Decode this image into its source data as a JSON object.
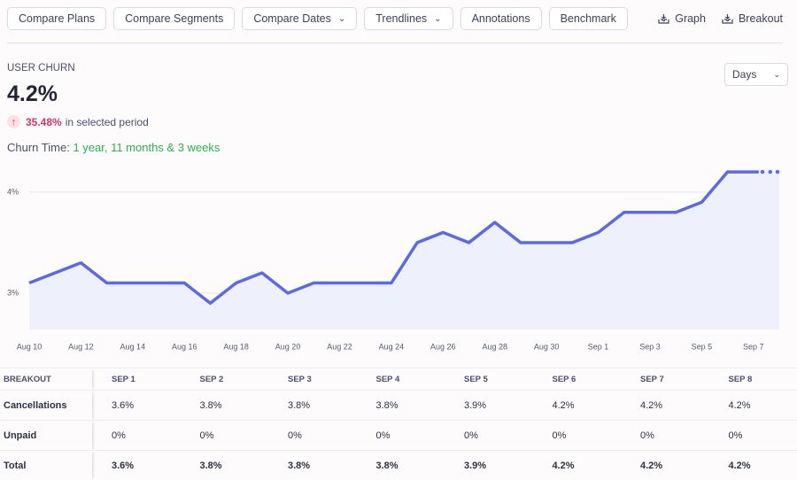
{
  "toolbar": {
    "buttons": [
      {
        "label": "Compare Plans",
        "dropdown": false
      },
      {
        "label": "Compare Segments",
        "dropdown": false
      },
      {
        "label": "Compare Dates",
        "dropdown": true
      },
      {
        "label": "Trendlines",
        "dropdown": true
      },
      {
        "label": "Annotations",
        "dropdown": false
      },
      {
        "label": "Benchmark",
        "dropdown": false
      }
    ],
    "actions": [
      "Graph",
      "Breakout"
    ]
  },
  "metric": {
    "label": "USER CHURN",
    "value": "4.2%",
    "change": "35.48%",
    "change_text": "in selected period",
    "time_label": "Churn Time:",
    "time_value": "1 year, 11 months & 3 weeks"
  },
  "period_select": "Days",
  "chart_data": {
    "type": "line",
    "color": "#5a6ae6",
    "area_color": "#eef0fb",
    "grid": true,
    "last_point_incomplete": true,
    "categories": [
      "Aug 10",
      null,
      "Aug 12",
      null,
      "Aug 14",
      null,
      "Aug 16",
      null,
      "Aug 18",
      null,
      "Aug 20",
      null,
      "Aug 22",
      null,
      "Aug 24",
      null,
      "Aug 26",
      null,
      "Aug 28",
      null,
      "Aug 30",
      null,
      "Sep 1",
      null,
      "Sep 3",
      null,
      "Sep 5",
      null,
      "Sep 7",
      null
    ],
    "values": [
      3.1,
      3.2,
      3.3,
      3.1,
      3.1,
      3.1,
      3.1,
      2.9,
      3.1,
      3.2,
      3.0,
      3.1,
      3.1,
      3.1,
      3.1,
      3.5,
      3.6,
      3.5,
      3.7,
      3.5,
      3.5,
      3.5,
      3.6,
      3.8,
      3.8,
      3.8,
      3.9,
      4.2,
      4.2,
      4.2
    ],
    "ylim": [
      2.64,
      4.28
    ],
    "yticks": [
      {
        "value": 3,
        "label": "3%"
      },
      {
        "value": 4,
        "label": "4%"
      }
    ]
  },
  "table": {
    "header": "BREAKOUT",
    "columns": [
      "SEP 1",
      "SEP 2",
      "SEP 3",
      "SEP 4",
      "SEP 5",
      "SEP 6",
      "SEP 7",
      "SEP 8"
    ],
    "rows": [
      {
        "label": "Cancellations",
        "cells": [
          "3.6%",
          "3.8%",
          "3.8%",
          "3.8%",
          "3.9%",
          "4.2%",
          "4.2%",
          "4.2%"
        ]
      },
      {
        "label": "Unpaid",
        "cells": [
          "0%",
          "0%",
          "0%",
          "0%",
          "0%",
          "0%",
          "0%",
          "0%"
        ]
      },
      {
        "label": "Total",
        "cells": [
          "3.6%",
          "3.8%",
          "3.8%",
          "3.8%",
          "3.9%",
          "4.2%",
          "4.2%",
          "4.2%"
        ]
      }
    ]
  }
}
